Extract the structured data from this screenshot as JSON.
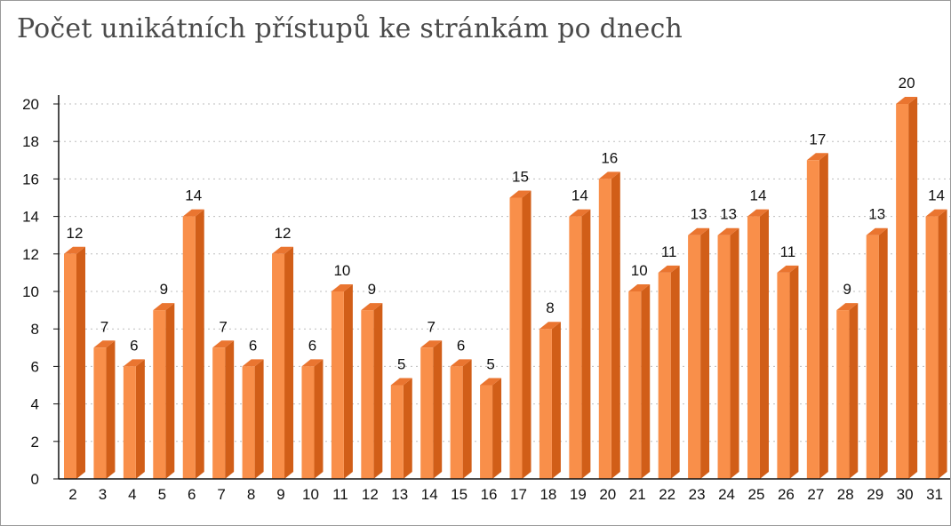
{
  "page": {
    "title": "Počet unikátních přístupů ke stránkám po dnech"
  },
  "chart_data": {
    "type": "bar",
    "title": "Počet unikátních přístupů ke stránkám po dnech",
    "xlabel": "",
    "ylabel": "",
    "categories": [
      "2",
      "3",
      "4",
      "5",
      "6",
      "7",
      "8",
      "9",
      "10",
      "11",
      "12",
      "13",
      "14",
      "15",
      "16",
      "17",
      "18",
      "19",
      "20",
      "21",
      "22",
      "23",
      "24",
      "25",
      "26",
      "27",
      "28",
      "29",
      "30",
      "31"
    ],
    "values": [
      12,
      7,
      6,
      9,
      14,
      7,
      6,
      12,
      6,
      10,
      9,
      5,
      7,
      6,
      5,
      15,
      8,
      14,
      16,
      10,
      11,
      13,
      13,
      14,
      11,
      17,
      9,
      13,
      20,
      14
    ],
    "ylim": [
      0,
      20
    ],
    "yticks": [
      0,
      2,
      4,
      6,
      8,
      10,
      12,
      14,
      16,
      18,
      20
    ],
    "grid": true,
    "legend": "none",
    "colors": {
      "bar_front": "#f98f4a",
      "bar_side": "#d15e18",
      "bar_top": "#ea7530",
      "grid": "#bdbdbd",
      "axis": "#111111"
    }
  }
}
